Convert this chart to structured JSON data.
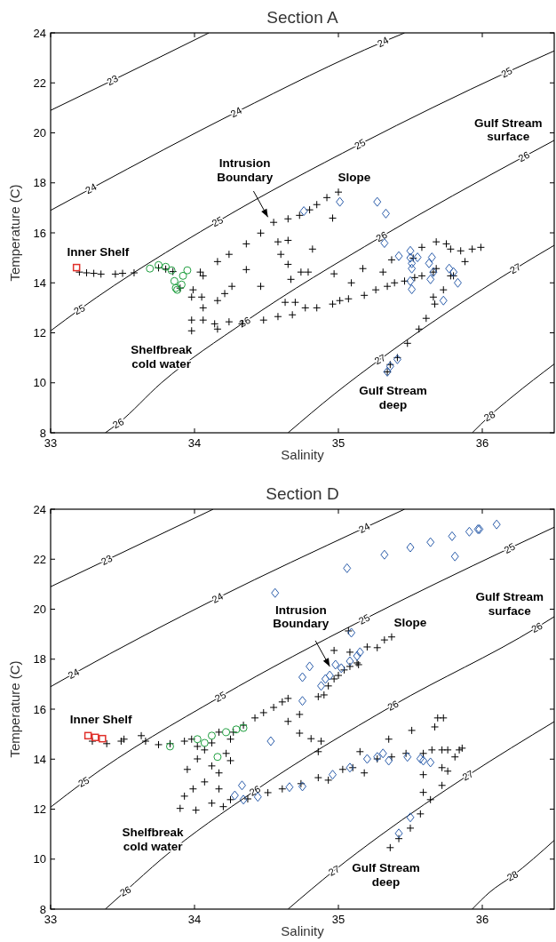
{
  "chart_data": [
    {
      "type": "scatter",
      "title": "Section A",
      "xlabel": "Salinity",
      "ylabel": "Temperature (C)",
      "xlim": [
        33,
        36.5
      ],
      "ylim": [
        8,
        24
      ],
      "xticks": [
        33,
        34,
        35,
        36
      ],
      "yticks": [
        8,
        10,
        12,
        14,
        16,
        18,
        20,
        22,
        24
      ],
      "series": [
        {
          "type": "line",
          "color": "#000000",
          "marker": "none",
          "x": [
            33,
            33.43,
            34.1
          ],
          "values": [
            20.9,
            22.1,
            24
          ]
        },
        {
          "type": "line",
          "color": "#000000",
          "marker": "none",
          "x": [
            33,
            33.28,
            34.29,
            35.31,
            35.46
          ],
          "values": [
            16.9,
            17.77,
            20.83,
            23.64,
            24
          ]
        },
        {
          "type": "line",
          "color": "#000000",
          "marker": "none",
          "x": [
            33,
            33.2,
            34.16,
            35.15,
            36.17,
            36.5
          ],
          "values": [
            12.08,
            12.93,
            16.45,
            19.55,
            22.42,
            23.28
          ]
        },
        {
          "type": "line",
          "color": "#000000",
          "marker": "none",
          "x": [
            33.38,
            33.47,
            33.77,
            34.35,
            35.3,
            36.29,
            36.5
          ],
          "values": [
            8,
            8.38,
            10.0,
            12.44,
            15.85,
            19.05,
            19.7
          ]
        },
        {
          "type": "line",
          "color": "#000000",
          "marker": "none",
          "x": [
            34.65,
            34.97,
            35.29,
            36.23,
            36.5
          ],
          "values": [
            8,
            9.54,
            10.94,
            14.57,
            15.5
          ]
        },
        {
          "type": "line",
          "color": "#000000",
          "marker": "none",
          "x": [
            35.93,
            36.05,
            36.21,
            36.5
          ],
          "values": [
            8,
            8.67,
            9.45,
            10.75
          ]
        },
        {
          "color": "#000000",
          "marker": "cross",
          "x": [
            33.2,
            33.25,
            33.3,
            33.35,
            33.45,
            33.5,
            33.58,
            33.75,
            33.8,
            33.85,
            33.9,
            34.04,
            34.16,
            34.24,
            34.36,
            34.46,
            34.55,
            34.65,
            34.73,
            34.8,
            34.85,
            34.92,
            35.0,
            34.58,
            34.65,
            34.6,
            34.82,
            34.65,
            34.67,
            34.74,
            34.79,
            34.96,
            34.36,
            34.26,
            34.46,
            33.98,
            34.05,
            34.06,
            33.98,
            34.06,
            34.14,
            34.24,
            33.98,
            34.16,
            34.06,
            33.99,
            34.16,
            34.21,
            34.33,
            34.48,
            34.58,
            34.68,
            34.63,
            34.7,
            34.77,
            34.85,
            34.96,
            35.01,
            35.07,
            35.09,
            35.18,
            35.26,
            35.34,
            35.39,
            35.46,
            35.53,
            35.58,
            35.66,
            34.97,
            35.17,
            35.31,
            35.37,
            35.58,
            35.68,
            35.75,
            35.78,
            35.85,
            35.93,
            35.99,
            35.52,
            35.68,
            35.88,
            35.8,
            35.73,
            35.67,
            35.61,
            35.56,
            35.48,
            35.41,
            35.36,
            35.34,
            35.66,
            35.78
          ],
          "values": [
            14.43,
            14.4,
            14.38,
            14.35,
            14.35,
            14.38,
            14.4,
            14.6,
            14.55,
            14.45,
            13.79,
            14.43,
            14.85,
            15.14,
            15.56,
            15.99,
            16.42,
            16.56,
            16.7,
            16.92,
            17.13,
            17.41,
            17.63,
            15.64,
            15.7,
            15.14,
            15.35,
            14.74,
            14.14,
            14.43,
            14.43,
            16.59,
            14.53,
            13.86,
            13.86,
            13.43,
            13.43,
            13.0,
            12.51,
            12.51,
            12.36,
            12.44,
            12.08,
            12.15,
            14.28,
            13.72,
            13.29,
            13.57,
            12.36,
            12.51,
            12.65,
            12.72,
            13.22,
            13.22,
            13.0,
            13.0,
            13.15,
            13.29,
            13.36,
            14.0,
            13.5,
            13.72,
            13.86,
            14.0,
            14.07,
            14.21,
            14.28,
            14.43,
            14.36,
            14.57,
            14.43,
            14.92,
            15.42,
            15.64,
            15.56,
            15.35,
            15.28,
            15.35,
            15.42,
            14.99,
            14.57,
            14.85,
            14.28,
            13.72,
            13.15,
            12.58,
            12.15,
            11.58,
            11.01,
            10.73,
            10.44,
            13.43,
            14.28
          ]
        },
        {
          "color": "#2a5caa",
          "marker": "diamond",
          "x": [
            34.76,
            35.01,
            35.27,
            35.33,
            35.32,
            35.42,
            35.5,
            35.5,
            35.51,
            35.51,
            35.5,
            35.51,
            35.55,
            35.63,
            35.65,
            35.64,
            35.66,
            35.77,
            35.8,
            35.34,
            35.36,
            35.41,
            35.83,
            35.73
          ],
          "values": [
            16.87,
            17.24,
            17.24,
            16.77,
            15.59,
            15.07,
            15.28,
            15.0,
            14.78,
            14.57,
            14.07,
            13.74,
            15.02,
            14.78,
            15.02,
            14.14,
            14.43,
            14.57,
            14.43,
            10.44,
            10.66,
            10.94,
            14.0,
            13.29
          ]
        },
        {
          "color": "#1e9e3e",
          "marker": "circle",
          "x": [
            33.69,
            33.75,
            33.8,
            33.84,
            33.86,
            33.87,
            33.92,
            33.95,
            33.91,
            33.88
          ],
          "values": [
            14.57,
            14.71,
            14.64,
            14.5,
            14.07,
            13.79,
            14.28,
            14.5,
            13.93,
            13.72
          ]
        },
        {
          "color": "#e0302a",
          "marker": "square",
          "x": [
            33.18
          ],
          "values": [
            14.61
          ]
        }
      ],
      "annotations": [
        {
          "text": "23",
          "x": 33.43,
          "y": 22.11
        },
        {
          "text": "24",
          "x": 33.28,
          "y": 17.77
        },
        {
          "text": "24",
          "x": 34.29,
          "y": 20.83
        },
        {
          "text": "24",
          "x": 35.31,
          "y": 23.64
        },
        {
          "text": "25",
          "x": 33.2,
          "y": 12.93
        },
        {
          "text": "25",
          "x": 34.16,
          "y": 16.45
        },
        {
          "text": "25",
          "x": 35.15,
          "y": 19.55
        },
        {
          "text": "25",
          "x": 36.17,
          "y": 22.42
        },
        {
          "text": "26",
          "x": 33.47,
          "y": 8.38
        },
        {
          "text": "26",
          "x": 34.35,
          "y": 12.44
        },
        {
          "text": "26",
          "x": 35.3,
          "y": 15.85
        },
        {
          "text": "26",
          "x": 36.29,
          "y": 19.05
        },
        {
          "text": "27",
          "x": 35.29,
          "y": 10.94
        },
        {
          "text": "27",
          "x": 36.23,
          "y": 14.57
        },
        {
          "text": "28",
          "x": 36.05,
          "y": 8.67
        },
        "Inner Shelf",
        "Intrusion\nBoundary",
        "Slope",
        "Gulf Stream\nsurface",
        "Shelfbreak\ncold water",
        "Gulf Stream\ndeep"
      ]
    },
    {
      "type": "scatter",
      "title": "Section D",
      "xlabel": "Salinity",
      "ylabel": "Temperature (C)",
      "xlim": [
        33,
        36.5
      ],
      "ylim": [
        8,
        24
      ],
      "xticks": [
        33,
        34,
        35,
        36
      ],
      "yticks": [
        8,
        10,
        12,
        14,
        16,
        18,
        20,
        22,
        24
      ],
      "series": [
        {
          "type": "line",
          "color": "#000000",
          "marker": "none",
          "x": [
            33,
            33.39,
            34.13
          ],
          "values": [
            20.9,
            21.97,
            24
          ]
        },
        {
          "type": "line",
          "color": "#000000",
          "marker": "none",
          "x": [
            33,
            33.16,
            34.16,
            35.18,
            35.46
          ],
          "values": [
            16.9,
            17.42,
            20.45,
            23.25,
            24
          ]
        },
        {
          "type": "line",
          "color": "#000000",
          "marker": "none",
          "x": [
            33,
            33.23,
            34.18,
            35.18,
            36.19,
            36.5
          ],
          "values": [
            12.08,
            13.09,
            16.5,
            19.6,
            22.44,
            23.28
          ]
        },
        {
          "type": "line",
          "color": "#000000",
          "marker": "none",
          "x": [
            33.38,
            33.52,
            33.77,
            34.42,
            35.38,
            36.38,
            36.5
          ],
          "values": [
            8,
            8.72,
            10.0,
            12.74,
            16.15,
            19.27,
            19.7
          ]
        },
        {
          "type": "line",
          "color": "#000000",
          "marker": "none",
          "x": [
            34.65,
            34.97,
            35.29,
            35.9,
            36.5
          ],
          "values": [
            8,
            9.54,
            10.94,
            13.35,
            15.5
          ]
        },
        {
          "type": "line",
          "color": "#000000",
          "marker": "none",
          "x": [
            35.93,
            36.05,
            36.21,
            36.5
          ],
          "values": [
            8,
            8.67,
            9.33,
            10.75
          ]
        },
        {
          "color": "#000000",
          "marker": "cross",
          "x": [
            33.29,
            33.39,
            33.49,
            33.51,
            33.63,
            33.66,
            33.75,
            33.83,
            33.93,
            33.98,
            34.02,
            34.12,
            34.17,
            34.25,
            34.27,
            34.34,
            34.42,
            34.48,
            34.55,
            34.61,
            34.65,
            34.65,
            34.73,
            34.73,
            34.81,
            34.88,
            34.86,
            34.86,
            34.9,
            34.93,
            34.97,
            35.0,
            35.04,
            35.08,
            35.13,
            35.14,
            35.2,
            35.27,
            35.32,
            35.37,
            34.97,
            35.08,
            35.07,
            33.95,
            34.02,
            34.07,
            34.12,
            34.17,
            34.07,
            33.99,
            33.93,
            33.9,
            34.01,
            34.12,
            34.2,
            34.25,
            34.22,
            34.25,
            34.17,
            34.37,
            34.51,
            34.61,
            34.74,
            34.86,
            34.93,
            35.03,
            35.1,
            35.18,
            35.15,
            35.27,
            35.35,
            35.37,
            35.51,
            35.47,
            35.59,
            35.65,
            35.67,
            35.69,
            35.73,
            35.72,
            35.76,
            35.84,
            35.86,
            35.81,
            35.76,
            35.72,
            35.64,
            35.57,
            35.5,
            35.42,
            35.36,
            35.59,
            35.59,
            35.72
          ],
          "values": [
            14.72,
            14.62,
            14.72,
            14.8,
            14.94,
            14.72,
            14.58,
            14.62,
            14.72,
            14.8,
            14.51,
            14.65,
            15.08,
            14.8,
            15.08,
            15.36,
            15.65,
            15.86,
            16.07,
            16.29,
            16.43,
            15.51,
            15.79,
            15.04,
            14.82,
            14.72,
            14.3,
            16.5,
            16.57,
            16.93,
            17.21,
            17.35,
            17.57,
            17.71,
            17.85,
            17.78,
            18.49,
            18.46,
            18.77,
            18.89,
            18.35,
            18.28,
            19.13,
            13.59,
            14.01,
            14.37,
            13.73,
            13.45,
            13.09,
            12.81,
            12.52,
            12.03,
            11.96,
            12.24,
            12.1,
            12.38,
            14.23,
            13.94,
            12.81,
            12.41,
            12.66,
            12.81,
            13.02,
            13.26,
            13.16,
            13.59,
            13.66,
            13.45,
            14.3,
            14.01,
            14.8,
            14.09,
            15.15,
            14.23,
            14.23,
            14.37,
            15.29,
            15.65,
            15.65,
            14.37,
            14.37,
            14.37,
            14.44,
            14.09,
            13.52,
            12.95,
            12.38,
            11.81,
            11.24,
            10.82,
            10.46,
            13.38,
            12.67,
            13.66
          ]
        },
        {
          "color": "#2a5caa",
          "marker": "diamond",
          "x": [
            34.56,
            35.06,
            35.32,
            35.5,
            35.64,
            35.79,
            35.81,
            35.91,
            35.97,
            35.98,
            36.1,
            35.09,
            34.75,
            34.8,
            34.75,
            34.88,
            34.91,
            34.94,
            34.98,
            35.02,
            35.08,
            35.13,
            35.15,
            34.53,
            34.33,
            34.28,
            34.34,
            34.44,
            34.66,
            34.75,
            34.96,
            35.08,
            35.2,
            35.27,
            35.31,
            35.35,
            35.48,
            35.57,
            35.59,
            35.64,
            35.42,
            35.5
          ],
          "values": [
            20.65,
            21.64,
            22.18,
            22.47,
            22.68,
            22.92,
            22.11,
            23.1,
            23.2,
            23.2,
            23.39,
            19.06,
            17.28,
            17.71,
            16.33,
            16.93,
            17.21,
            17.35,
            17.78,
            17.64,
            17.92,
            18.13,
            18.28,
            14.72,
            12.95,
            12.55,
            12.38,
            12.49,
            12.88,
            12.91,
            13.38,
            13.66,
            14.01,
            14.09,
            14.23,
            13.94,
            14.09,
            14.02,
            13.94,
            13.87,
            11.03,
            11.67
          ]
        },
        {
          "color": "#1e9e3e",
          "marker": "circle",
          "x": [
            33.83,
            34.02,
            34.12,
            34.22,
            34.29,
            34.34,
            34.16,
            34.07
          ],
          "values": [
            14.51,
            14.8,
            14.94,
            15.08,
            15.19,
            15.25,
            14.09,
            14.65
          ]
        },
        {
          "color": "#e0302a",
          "marker": "square",
          "x": [
            33.26,
            33.31,
            33.36
          ],
          "values": [
            14.94,
            14.87,
            14.82
          ]
        }
      ],
      "annotations": [
        {
          "text": "23",
          "x": 33.39,
          "y": 21.97
        },
        {
          "text": "24",
          "x": 33.16,
          "y": 17.42
        },
        {
          "text": "24",
          "x": 34.16,
          "y": 20.45
        },
        {
          "text": "24",
          "x": 35.18,
          "y": 23.25
        },
        {
          "text": "25",
          "x": 33.23,
          "y": 13.09
        },
        {
          "text": "25",
          "x": 34.18,
          "y": 16.5
        },
        {
          "text": "25",
          "x": 35.18,
          "y": 19.6
        },
        {
          "text": "25",
          "x": 36.19,
          "y": 22.44
        },
        {
          "text": "26",
          "x": 33.52,
          "y": 8.72
        },
        {
          "text": "26",
          "x": 34.42,
          "y": 12.74
        },
        {
          "text": "26",
          "x": 35.38,
          "y": 16.15
        },
        {
          "text": "26",
          "x": 36.38,
          "y": 19.27
        },
        {
          "text": "27",
          "x": 34.97,
          "y": 9.54
        },
        {
          "text": "27",
          "x": 35.9,
          "y": 13.35
        },
        {
          "text": "28",
          "x": 36.21,
          "y": 9.33
        },
        "Inner Shelf",
        "Intrusion\nBoundary",
        "Slope",
        "Gulf Stream\nsurface",
        "Shelfbreak\ncold water",
        "Gulf Stream\ndeep"
      ]
    }
  ]
}
